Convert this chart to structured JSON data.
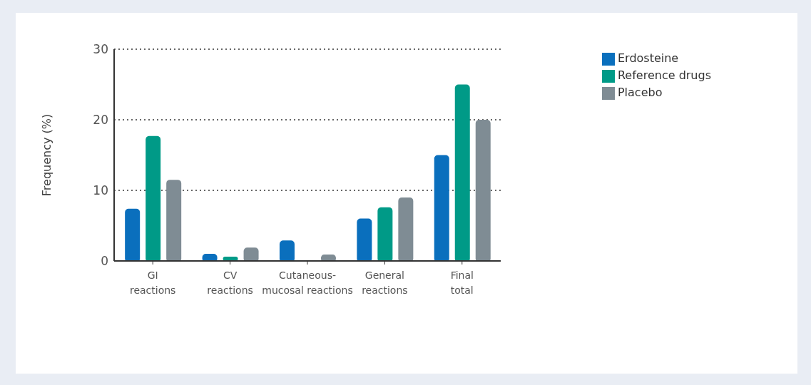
{
  "chart_data": {
    "type": "bar",
    "ylabel": "Frequency (%)",
    "categories": [
      "GI\nreactions",
      "CV\nreactions",
      "Cutaneous-\nmucosal reactions",
      "General\nreactions",
      "Final\ntotal"
    ],
    "series": [
      {
        "name": "Erdosteine",
        "color": "#0a6fbd",
        "values": [
          7.4,
          1.0,
          2.9,
          6.0,
          15
        ]
      },
      {
        "name": "Reference drugs",
        "color": "#009a87",
        "values": [
          17.7,
          0.6,
          0,
          7.6,
          25
        ]
      },
      {
        "name": "Placebo",
        "color": "#7f8c94",
        "values": [
          11.5,
          1.9,
          0.9,
          9.0,
          20
        ]
      }
    ],
    "ylim": [
      0,
      30
    ],
    "yticks": [
      0,
      10,
      20,
      30
    ],
    "grid": "y",
    "legend": "top right"
  }
}
